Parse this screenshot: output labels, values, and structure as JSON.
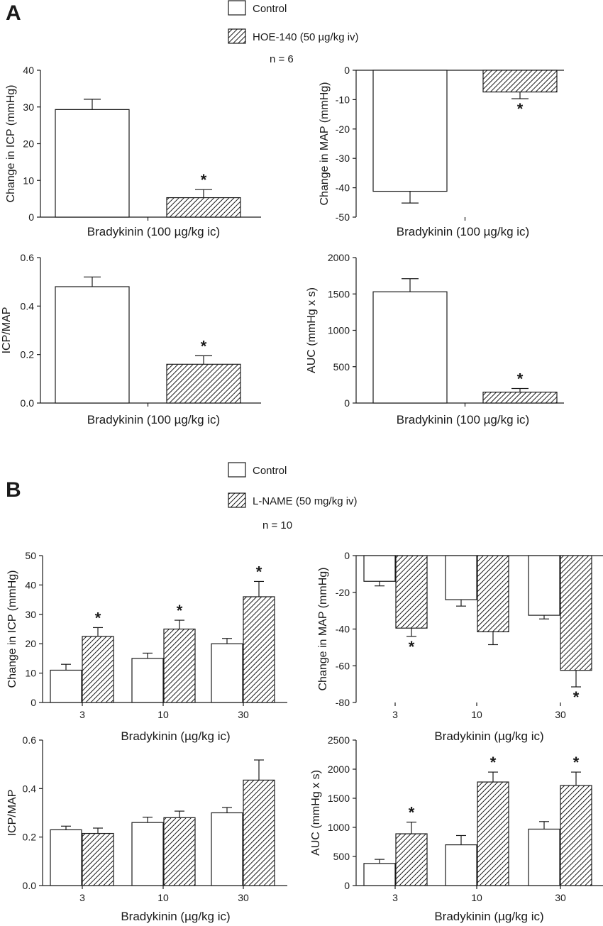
{
  "panel_a": {
    "letter": "A",
    "legend": [
      {
        "label": "Control",
        "pattern": "open"
      },
      {
        "label": "HOE-140 (50 µg/kg iv)",
        "pattern": "hatched"
      }
    ],
    "n_label": "n = 6"
  },
  "panel_b": {
    "letter": "B",
    "legend": [
      {
        "label": "Control",
        "pattern": "open"
      },
      {
        "label": "L-NAME (50 mg/kg iv)",
        "pattern": "hatched"
      }
    ],
    "n_label": "n = 10"
  },
  "colors": {
    "ink": "#1a1a1a",
    "bar_fill": "#ffffff"
  },
  "chart_data": [
    {
      "id": "a_icp",
      "type": "bar",
      "ylabel": "Change in ICP (mmHg)",
      "xlabel": "Bradykinin (100 µg/kg ic)",
      "ylim": [
        0,
        40
      ],
      "yticks": [
        0,
        10,
        20,
        30,
        40
      ],
      "categories": [
        ""
      ],
      "series": [
        {
          "name": "Control",
          "pattern": "open",
          "values": [
            29.3
          ],
          "errors": [
            2.8
          ],
          "stars": [
            false
          ]
        },
        {
          "name": "HOE-140 (50 µg/kg iv)",
          "pattern": "hatched",
          "values": [
            5.3
          ],
          "errors": [
            2.2
          ],
          "stars": [
            true
          ]
        }
      ]
    },
    {
      "id": "a_map",
      "type": "bar",
      "ylabel": "Change in MAP (mmHg)",
      "xlabel": "Bradykinin (100 µg/kg ic)",
      "ylim": [
        -50,
        0
      ],
      "yticks": [
        0,
        -10,
        -20,
        -30,
        -40,
        -50
      ],
      "categories": [
        ""
      ],
      "series": [
        {
          "name": "Control",
          "pattern": "open",
          "values": [
            -41.2
          ],
          "errors": [
            4.0
          ],
          "stars": [
            false
          ]
        },
        {
          "name": "HOE-140 (50 µg/kg iv)",
          "pattern": "hatched",
          "values": [
            -7.4
          ],
          "errors": [
            2.3
          ],
          "stars": [
            true
          ]
        }
      ]
    },
    {
      "id": "a_ratio",
      "type": "bar",
      "ylabel": "ICP/MAP",
      "xlabel": "Bradykinin (100 µg/kg ic)",
      "ylim": [
        0,
        0.6
      ],
      "yticks": [
        "0.0",
        "0.2",
        "0.4",
        "0.6"
      ],
      "categories": [
        ""
      ],
      "series": [
        {
          "name": "Control",
          "pattern": "open",
          "values": [
            0.48
          ],
          "errors": [
            0.04
          ],
          "stars": [
            false
          ]
        },
        {
          "name": "HOE-140 (50 µg/kg iv)",
          "pattern": "hatched",
          "values": [
            0.16
          ],
          "errors": [
            0.035
          ],
          "stars": [
            true
          ]
        }
      ]
    },
    {
      "id": "a_auc",
      "type": "bar",
      "ylabel": "AUC (mmHg x s)",
      "xlabel": "Bradykinin (100 µg/kg ic)",
      "ylim": [
        0,
        2000
      ],
      "yticks": [
        0,
        500,
        1000,
        1500,
        2000
      ],
      "categories": [
        ""
      ],
      "series": [
        {
          "name": "Control",
          "pattern": "open",
          "values": [
            1530
          ],
          "errors": [
            180
          ],
          "stars": [
            false
          ]
        },
        {
          "name": "HOE-140 (50 µg/kg iv)",
          "pattern": "hatched",
          "values": [
            150
          ],
          "errors": [
            50
          ],
          "stars": [
            true
          ]
        }
      ]
    },
    {
      "id": "b_icp",
      "type": "bar",
      "ylabel": "Change in ICP (mmHg)",
      "xlabel": "Bradykinin (µg/kg ic)",
      "ylim": [
        0,
        50
      ],
      "yticks": [
        0,
        10,
        20,
        30,
        40,
        50
      ],
      "categories": [
        "3",
        "10",
        "30"
      ],
      "series": [
        {
          "name": "Control",
          "pattern": "open",
          "values": [
            11,
            15,
            20
          ],
          "errors": [
            2,
            1.8,
            1.8
          ],
          "stars": [
            false,
            false,
            false
          ]
        },
        {
          "name": "L-NAME (50 mg/kg iv)",
          "pattern": "hatched",
          "values": [
            22.5,
            25,
            36
          ],
          "errors": [
            3,
            3,
            5.2
          ],
          "stars": [
            true,
            true,
            true
          ]
        }
      ]
    },
    {
      "id": "b_map",
      "type": "bar",
      "ylabel": "Change in MAP (mmHg)",
      "xlabel": "Bradykinin (µg/kg ic)",
      "ylim": [
        -80,
        0
      ],
      "yticks": [
        0,
        -20,
        -40,
        -60,
        -80
      ],
      "categories": [
        "3",
        "10",
        "30"
      ],
      "series": [
        {
          "name": "Control",
          "pattern": "open",
          "values": [
            -14,
            -24,
            -32.5
          ],
          "errors": [
            2.5,
            3.5,
            2
          ],
          "stars": [
            false,
            false,
            false
          ]
        },
        {
          "name": "L-NAME (50 mg/kg iv)",
          "pattern": "hatched",
          "values": [
            -39.5,
            -41.5,
            -62.5
          ],
          "errors": [
            4.5,
            7,
            9
          ],
          "stars": [
            true,
            false,
            true
          ]
        }
      ]
    },
    {
      "id": "b_ratio",
      "type": "bar",
      "ylabel": "ICP/MAP",
      "xlabel": "Bradykinin (µg/kg ic)",
      "ylim": [
        0,
        0.6
      ],
      "yticks": [
        "0.0",
        "0.2",
        "0.4",
        "0.6"
      ],
      "categories": [
        "3",
        "10",
        "30"
      ],
      "series": [
        {
          "name": "Control",
          "pattern": "open",
          "values": [
            0.23,
            0.26,
            0.3
          ],
          "errors": [
            0.015,
            0.022,
            0.022
          ],
          "stars": [
            false,
            false,
            false
          ]
        },
        {
          "name": "L-NAME (50 mg/kg iv)",
          "pattern": "hatched",
          "values": [
            0.215,
            0.28,
            0.435
          ],
          "errors": [
            0.022,
            0.027,
            0.083
          ],
          "stars": [
            false,
            false,
            false
          ]
        }
      ]
    },
    {
      "id": "b_auc",
      "type": "bar",
      "ylabel": "AUC (mmHg x s)",
      "xlabel": "Bradykinin (µg/kg ic)",
      "ylim": [
        0,
        2500
      ],
      "yticks": [
        0,
        500,
        1000,
        1500,
        2000,
        2500
      ],
      "categories": [
        "3",
        "10",
        "30"
      ],
      "series": [
        {
          "name": "Control",
          "pattern": "open",
          "values": [
            380,
            700,
            970
          ],
          "errors": [
            70,
            160,
            130
          ],
          "stars": [
            false,
            false,
            false
          ]
        },
        {
          "name": "L-NAME (50 mg/kg iv)",
          "pattern": "hatched",
          "values": [
            890,
            1780,
            1720
          ],
          "errors": [
            200,
            170,
            230
          ],
          "stars": [
            true,
            true,
            true
          ]
        }
      ]
    }
  ]
}
